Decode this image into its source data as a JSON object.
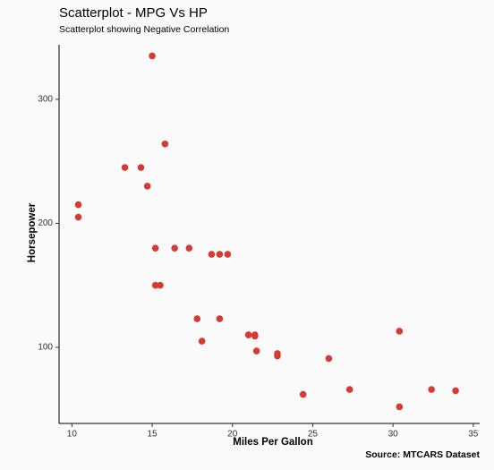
{
  "chart_data": {
    "type": "scatter",
    "title": "Scatterplot - MPG Vs HP",
    "subtitle": "Scatterplot showing Negative Correlation",
    "x_label": "Miles Per Gallon",
    "y_label": "Horsepower",
    "caption": "Source: MTCARS Dataset",
    "color": "#d63a33",
    "grid": false,
    "x": [
      21.0,
      21.0,
      22.8,
      21.4,
      18.7,
      18.1,
      14.3,
      24.4,
      22.8,
      19.2,
      17.8,
      16.4,
      17.3,
      15.2,
      10.4,
      10.4,
      14.7,
      32.4,
      30.4,
      33.9,
      21.5,
      15.5,
      15.2,
      13.3,
      19.2,
      27.3,
      26.0,
      30.4,
      15.8,
      19.7,
      15.0,
      21.4
    ],
    "values": [
      110,
      110,
      93,
      110,
      175,
      105,
      245,
      62,
      95,
      123,
      123,
      180,
      180,
      180,
      205,
      215,
      230,
      66,
      52,
      65,
      97,
      150,
      150,
      245,
      175,
      66,
      91,
      113,
      264,
      175,
      335,
      109
    ],
    "xlim": [
      9.2,
      35.4
    ],
    "ylim": [
      38.6,
      344
    ],
    "xticks": [
      10,
      15,
      20,
      25,
      30,
      35
    ],
    "yticks": [
      100,
      200,
      300
    ]
  }
}
